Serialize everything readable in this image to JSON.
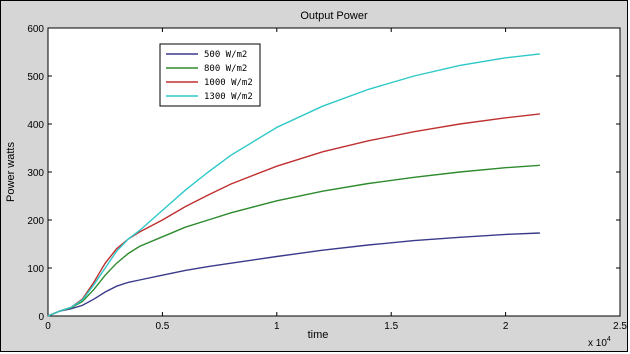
{
  "chart_data": {
    "type": "line",
    "title": "Output Power",
    "xlabel": "time",
    "ylabel": "Power watts",
    "x_multiplier_label": "x 10",
    "x_multiplier_exp": "4",
    "xlim": [
      0,
      2.5
    ],
    "ylim": [
      0,
      600
    ],
    "xticks": [
      "0",
      "0.5",
      "1",
      "1.5",
      "2",
      "2.5"
    ],
    "yticks": [
      "0",
      "100",
      "200",
      "300",
      "400",
      "500",
      "600"
    ],
    "grid": false,
    "legend_position": "top-left",
    "x": [
      0,
      0.05,
      0.1,
      0.15,
      0.2,
      0.25,
      0.3,
      0.35,
      0.4,
      0.5,
      0.6,
      0.7,
      0.8,
      1.0,
      1.2,
      1.4,
      1.6,
      1.8,
      2.0,
      2.15
    ],
    "series": [
      {
        "name": "500 W/m2",
        "color": "#3a3a8c",
        "values": [
          0,
          10,
          15,
          22,
          35,
          50,
          62,
          70,
          75,
          85,
          95,
          103,
          110,
          124,
          137,
          148,
          157,
          164,
          170,
          173
        ]
      },
      {
        "name": "800 W/m2",
        "color": "#2e8b2e",
        "values": [
          0,
          10,
          17,
          30,
          55,
          85,
          110,
          130,
          145,
          165,
          185,
          200,
          215,
          240,
          260,
          276,
          289,
          300,
          309,
          314
        ]
      },
      {
        "name": "1000 W/m2",
        "color": "#c03030",
        "values": [
          0,
          10,
          18,
          35,
          70,
          110,
          140,
          160,
          175,
          200,
          228,
          252,
          275,
          312,
          342,
          365,
          384,
          400,
          413,
          421
        ]
      },
      {
        "name": "1300 W/m2",
        "color": "#2ec8c8",
        "values": [
          0,
          10,
          18,
          33,
          65,
          100,
          135,
          160,
          178,
          220,
          262,
          300,
          335,
          393,
          437,
          472,
          500,
          522,
          538,
          546
        ]
      }
    ]
  }
}
